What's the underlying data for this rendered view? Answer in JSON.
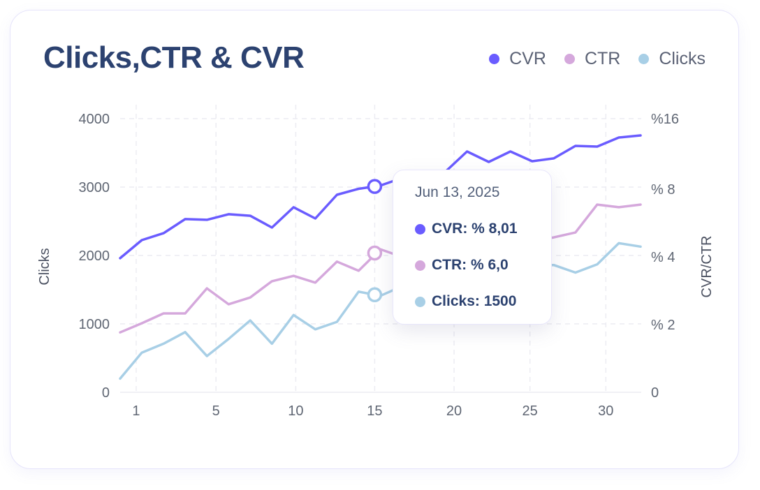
{
  "colors": {
    "cvr": "#6a5cff",
    "ctr": "#d5a8dc",
    "clicks": "#a8cfe6",
    "title": "#2c4270"
  },
  "chart_data": {
    "type": "line",
    "title": "Clicks,CTR & CVR",
    "xlabel": "",
    "ylabel": "Clicks",
    "y2label": "CVR/CTR",
    "legend": [
      "CVR",
      "CTR",
      "Clicks"
    ],
    "legend_position": "top-right",
    "x_index": [
      0,
      1,
      2,
      3,
      4,
      5,
      6,
      7,
      8,
      9,
      10,
      11,
      12,
      13,
      14,
      15,
      16,
      17,
      18,
      19,
      20,
      21,
      22,
      23,
      24
    ],
    "x_ticks": [
      {
        "label": "1",
        "at": 0.74
      },
      {
        "label": "5",
        "at": 4.42
      },
      {
        "label": "10",
        "at": 8.1
      },
      {
        "label": "15",
        "at": 11.74
      },
      {
        "label": "20",
        "at": 15.4
      },
      {
        "label": "25",
        "at": 18.9
      },
      {
        "label": "30",
        "at": 22.4
      }
    ],
    "y_ticks": [
      "0",
      "1000",
      "2000",
      "3000",
      "4000"
    ],
    "y_tick_values": [
      0,
      1000,
      2000,
      3000,
      4000
    ],
    "y2_ticks": [
      "0",
      "% 2",
      "% 4",
      "% 8",
      "%16"
    ],
    "y2_tick_values": [
      0,
      2,
      4,
      8,
      16
    ],
    "ylim": [
      0,
      4000
    ],
    "y2lim": [
      0,
      16
    ],
    "grid": true,
    "series": [
      {
        "name": "CVR",
        "axis": "right",
        "values": [
          3.96,
          4.99,
          5.4,
          6.23,
          6.19,
          6.52,
          6.43,
          5.73,
          6.93,
          6.27,
          7.67,
          8.04,
          8.4,
          9.27,
          9.66,
          9.98,
          12.28,
          11.09,
          12.28,
          11.17,
          11.49,
          12.91,
          12.83,
          13.86,
          14.1
        ]
      },
      {
        "name": "CTR",
        "axis": "right",
        "values": [
          1.77,
          2.04,
          2.33,
          2.33,
          3.07,
          2.6,
          2.8,
          3.28,
          3.44,
          3.24,
          3.86,
          3.59,
          4.45,
          4.0,
          4.33,
          4.54,
          4.74,
          4.66,
          4.95,
          4.95,
          5.15,
          5.44,
          7.09,
          6.93,
          7.09
        ]
      },
      {
        "name": "Clicks",
        "axis": "left",
        "values": [
          200,
          580,
          710,
          880,
          530,
          780,
          1050,
          710,
          1130,
          920,
          1030,
          1470,
          1410,
          1550,
          1700,
          1650,
          1810,
          1740,
          1860,
          1860,
          1860,
          1750,
          1870,
          2180,
          2130
        ]
      }
    ],
    "highlight": {
      "at": 11.74,
      "date": "Jun 13, 2025",
      "cvr": "CVR: % 8,01",
      "ctr": "CTR: % 6,0",
      "clicks": "Clicks: 1500"
    }
  }
}
